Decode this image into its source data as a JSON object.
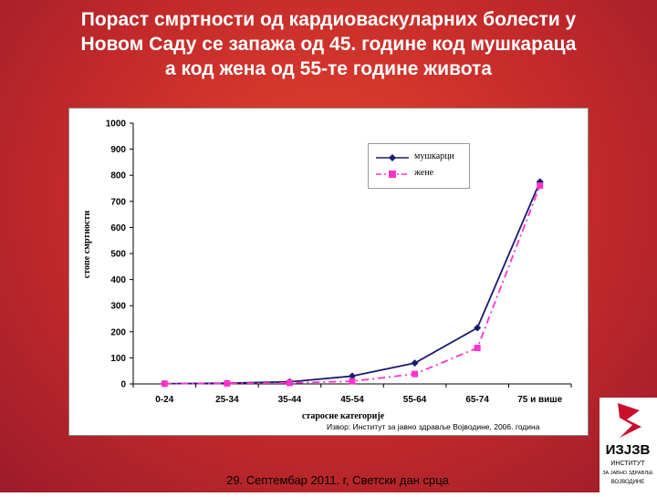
{
  "slide": {
    "title_lines": [
      "Пораст смртности од кардиоваскуларних болести у",
      "Новом Саду се запажа од 45. године код мушкараца",
      "а код жена од 55-те године живота"
    ],
    "source": "Извор: Институт за јавно здравље Војводине, 2006. година",
    "footer": "29. Септембар 2011. г, Светски дан срца",
    "logo_text": "ИЗЈЗВ",
    "logo_subtext": [
      "ИНСТИТУТ",
      "ЗА ЈАВНО ЗДРАВЉЕ",
      "ВОЈВОДИНЕ"
    ],
    "colors": {
      "background": "#c42a2a",
      "men": "#1a1a6e",
      "women": "#ff33cc"
    }
  },
  "chart_data": {
    "type": "line",
    "categories": [
      "0-24",
      "25-34",
      "35-44",
      "45-54",
      "55-64",
      "65-74",
      "75 и више"
    ],
    "series": [
      {
        "name": "мушкарци",
        "values": [
          1,
          3,
          8,
          30,
          80,
          215,
          775
        ]
      },
      {
        "name": "жене",
        "values": [
          1,
          2,
          4,
          10,
          38,
          138,
          760
        ]
      }
    ],
    "xlabel": "старосне категорије",
    "ylabel": "стопе смртности",
    "ylim": [
      0,
      1000
    ],
    "yticks": [
      "0",
      "100",
      "200",
      "300",
      "400",
      "500",
      "600",
      "700",
      "800",
      "900",
      "1000"
    ],
    "legend_position": "top-right",
    "grid": false
  }
}
